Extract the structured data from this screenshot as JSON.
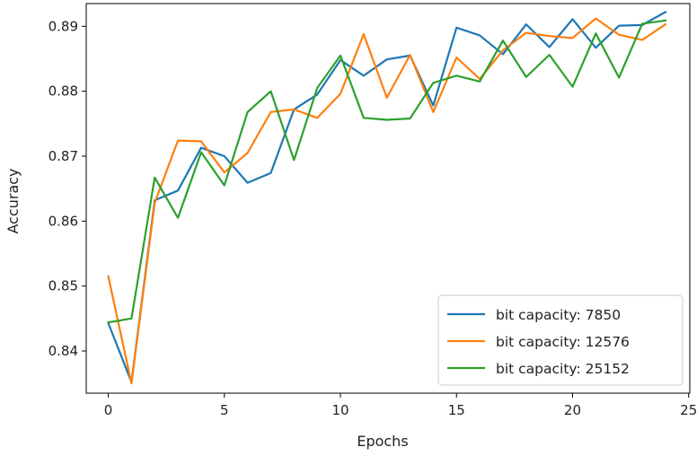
{
  "chart_data": {
    "type": "line",
    "title": "",
    "xlabel": "Epochs",
    "ylabel": "Accuracy",
    "xlim": [
      -0.95,
      25.05
    ],
    "ylim": [
      0.8335,
      0.8935
    ],
    "xticks": [
      0,
      5,
      10,
      15,
      20,
      25
    ],
    "yticks": [
      0.84,
      0.85,
      0.86,
      0.87,
      0.88,
      0.89
    ],
    "xtick_labels": [
      "0",
      "5",
      "10",
      "15",
      "20",
      "25"
    ],
    "ytick_labels": [
      "0.84",
      "0.85",
      "0.86",
      "0.87",
      "0.88",
      "0.89"
    ],
    "grid": false,
    "legend_position": "lower-right",
    "x": [
      0,
      1,
      2,
      3,
      4,
      5,
      6,
      7,
      8,
      9,
      10,
      11,
      12,
      13,
      14,
      15,
      16,
      17,
      18,
      19,
      20,
      21,
      22,
      23,
      24
    ],
    "series": [
      {
        "name": "bit capacity: 7850",
        "color": "#1f77b4",
        "values": [
          0.8443,
          0.8352,
          0.8632,
          0.8647,
          0.8713,
          0.87,
          0.8659,
          0.8674,
          0.8772,
          0.8795,
          0.8848,
          0.8824,
          0.8849,
          0.8855,
          0.8778,
          0.8898,
          0.8886,
          0.8857,
          0.8903,
          0.8868,
          0.8911,
          0.8867,
          0.8901,
          0.8902,
          0.8922
        ]
      },
      {
        "name": "bit capacity: 12576",
        "color": "#ff7f0e",
        "values": [
          0.8515,
          0.835,
          0.8628,
          0.8724,
          0.8723,
          0.8675,
          0.8705,
          0.8768,
          0.8772,
          0.8759,
          0.8796,
          0.8888,
          0.879,
          0.8856,
          0.8768,
          0.8852,
          0.8819,
          0.8863,
          0.889,
          0.8885,
          0.8882,
          0.8912,
          0.8887,
          0.8879,
          0.8903
        ]
      },
      {
        "name": "bit capacity: 25152",
        "color": "#2ca02c",
        "values": [
          0.8444,
          0.845,
          0.8667,
          0.8605,
          0.8706,
          0.8655,
          0.8768,
          0.88,
          0.8694,
          0.8805,
          0.8855,
          0.8759,
          0.8756,
          0.8758,
          0.8813,
          0.8824,
          0.8815,
          0.8878,
          0.8822,
          0.8856,
          0.8807,
          0.8889,
          0.8821,
          0.8904,
          0.8909
        ]
      }
    ]
  }
}
